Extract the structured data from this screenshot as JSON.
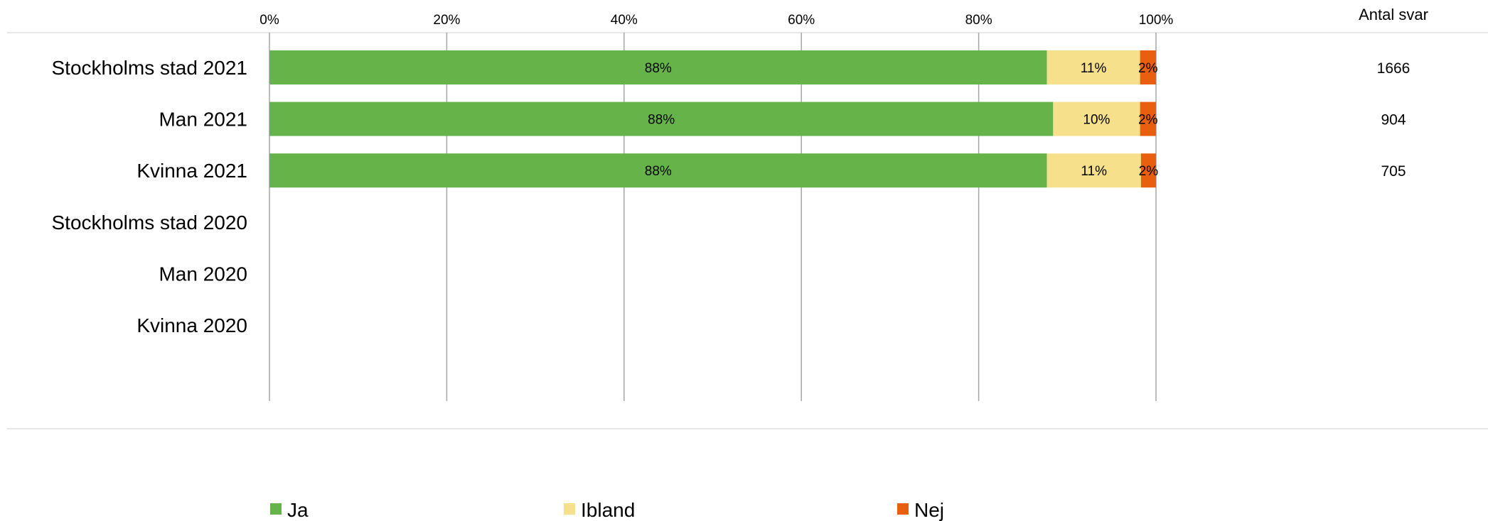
{
  "chart_data": {
    "type": "bar",
    "orientation": "horizontal",
    "stacked": true,
    "categories": [
      "Stockholms stad 2021",
      "Man 2021",
      "Kvinna 2021",
      "Stockholms stad 2020",
      "Man 2020",
      "Kvinna 2020"
    ],
    "series": [
      {
        "name": "Ja",
        "color": "#66b34a",
        "values": [
          87.7,
          88.4,
          87.7,
          null,
          null,
          null
        ],
        "labels": [
          "88%",
          "88%",
          "88%",
          "",
          "",
          ""
        ]
      },
      {
        "name": "Ibland",
        "color": "#f7e08c",
        "values": [
          10.5,
          9.8,
          10.6,
          null,
          null,
          null
        ],
        "labels": [
          "11%",
          "10%",
          "11%",
          "",
          "",
          ""
        ]
      },
      {
        "name": "Nej",
        "color": "#e8600f",
        "values": [
          1.8,
          1.8,
          1.7,
          null,
          null,
          null
        ],
        "labels": [
          "2%",
          "2%",
          "2%",
          "",
          "",
          ""
        ]
      }
    ],
    "xlim": [
      0,
      100
    ],
    "xticks": [
      "0%",
      "20%",
      "40%",
      "60%",
      "80%",
      "100%"
    ],
    "grid": true,
    "legend_position": "bottom",
    "count_header": "Antal svar",
    "counts": [
      "1666",
      "904",
      "705",
      "",
      "",
      ""
    ]
  }
}
